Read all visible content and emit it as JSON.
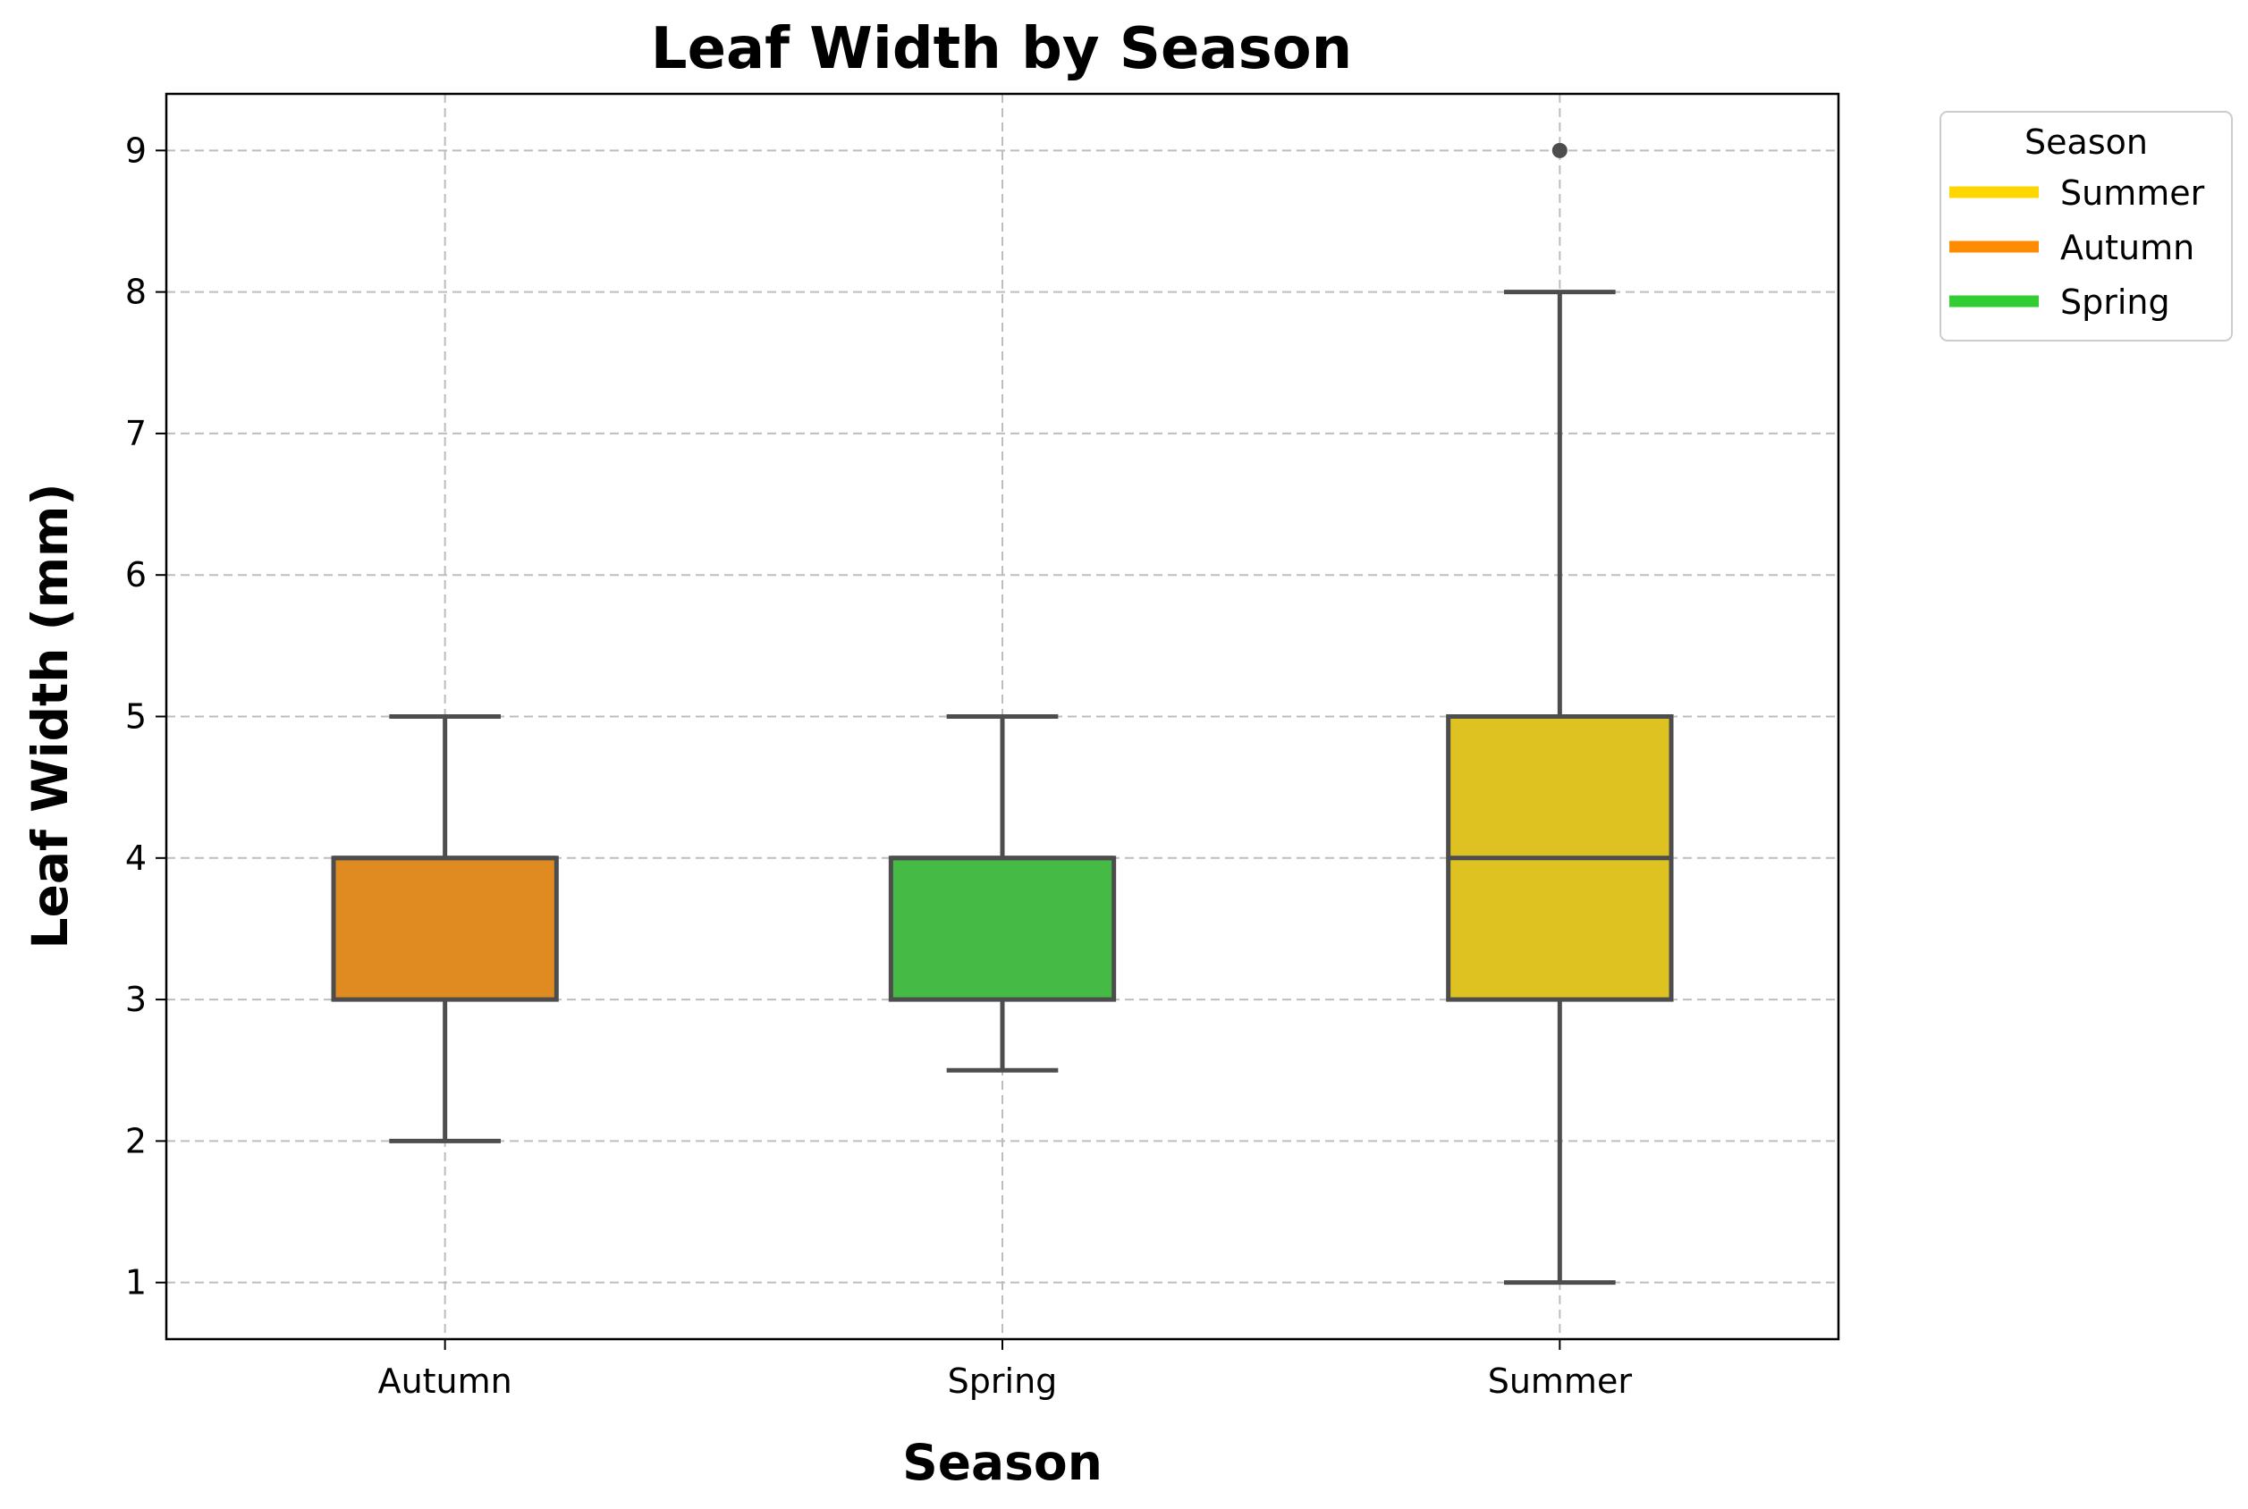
{
  "chart_data": {
    "type": "box",
    "title": "Leaf Width by Season",
    "xlabel": "Season",
    "ylabel": "Leaf Width (mm)",
    "categories": [
      "Autumn",
      "Spring",
      "Summer"
    ],
    "ylim": [
      0.6,
      9.4
    ],
    "yticks": [
      1,
      2,
      3,
      4,
      5,
      6,
      7,
      8,
      9
    ],
    "grid": true,
    "boxes": [
      {
        "category": "Autumn",
        "color": "#e08a22",
        "whisker_low": 2,
        "q1": 3,
        "median": 4,
        "q3": 4,
        "whisker_high": 5,
        "outliers": []
      },
      {
        "category": "Spring",
        "color": "#45bb45",
        "whisker_low": 2.5,
        "q1": 3,
        "median": 4,
        "q3": 4,
        "whisker_high": 5,
        "outliers": []
      },
      {
        "category": "Summer",
        "color": "#ddc222",
        "whisker_low": 1,
        "q1": 3,
        "median": 4,
        "q3": 5,
        "whisker_high": 8,
        "outliers": [
          9
        ]
      }
    ],
    "legend": {
      "title": "Season",
      "placement": "outside-top-right",
      "items": [
        {
          "label": "Summer",
          "color": "#ffd700"
        },
        {
          "label": "Autumn",
          "color": "#ff8c00"
        },
        {
          "label": "Spring",
          "color": "#32cd32"
        }
      ]
    }
  }
}
